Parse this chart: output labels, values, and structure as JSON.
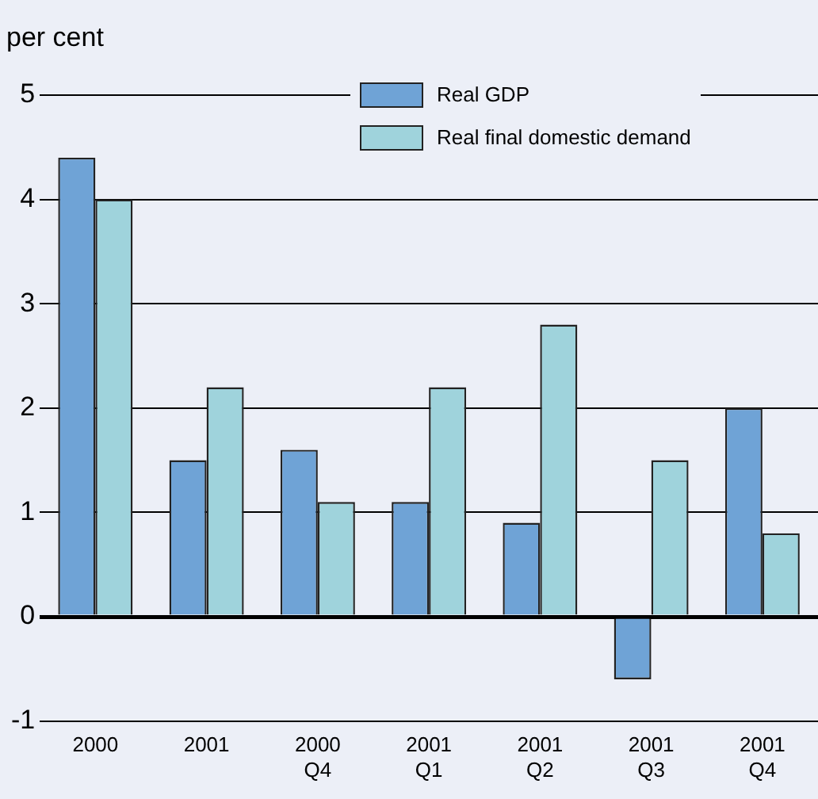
{
  "chart_data": {
    "type": "bar",
    "ylabel": "per cent",
    "categories": [
      "2000",
      "2001",
      "2000\nQ4",
      "2001\nQ1",
      "2001\nQ2",
      "2001\nQ3",
      "2001\nQ4"
    ],
    "series": [
      {
        "name": "Real GDP",
        "color": "#6fa3d6",
        "values": [
          4.4,
          1.5,
          1.6,
          1.1,
          0.9,
          -0.6,
          2.0
        ]
      },
      {
        "name": "Real final domestic demand",
        "color": "#9fd3dc",
        "values": [
          4.0,
          2.2,
          1.1,
          2.2,
          2.8,
          1.5,
          0.8
        ]
      }
    ],
    "ylim": [
      -1,
      5
    ],
    "yticks": [
      -1,
      0,
      1,
      2,
      3,
      4,
      5
    ],
    "grid": "y",
    "legend": "top"
  }
}
